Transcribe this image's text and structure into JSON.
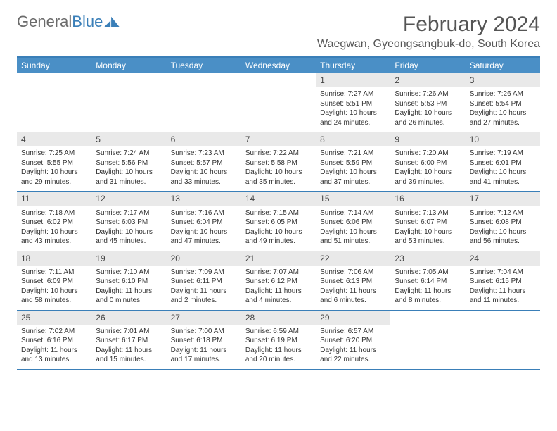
{
  "brand": {
    "text1": "General",
    "text2": "Blue",
    "color1": "#6b6b6b",
    "color2": "#3a7fb8"
  },
  "title": "February 2024",
  "location": "Waegwan, Gyeongsangbuk-do, South Korea",
  "header_bg": "#4a8fc6",
  "border_color": "#3a7fb8",
  "daynum_bg": "#e9e9e9",
  "day_names": [
    "Sunday",
    "Monday",
    "Tuesday",
    "Wednesday",
    "Thursday",
    "Friday",
    "Saturday"
  ],
  "weeks": [
    [
      null,
      null,
      null,
      null,
      {
        "n": "1",
        "sr": "Sunrise: 7:27 AM",
        "ss": "Sunset: 5:51 PM",
        "dl": "Daylight: 10 hours and 24 minutes."
      },
      {
        "n": "2",
        "sr": "Sunrise: 7:26 AM",
        "ss": "Sunset: 5:53 PM",
        "dl": "Daylight: 10 hours and 26 minutes."
      },
      {
        "n": "3",
        "sr": "Sunrise: 7:26 AM",
        "ss": "Sunset: 5:54 PM",
        "dl": "Daylight: 10 hours and 27 minutes."
      }
    ],
    [
      {
        "n": "4",
        "sr": "Sunrise: 7:25 AM",
        "ss": "Sunset: 5:55 PM",
        "dl": "Daylight: 10 hours and 29 minutes."
      },
      {
        "n": "5",
        "sr": "Sunrise: 7:24 AM",
        "ss": "Sunset: 5:56 PM",
        "dl": "Daylight: 10 hours and 31 minutes."
      },
      {
        "n": "6",
        "sr": "Sunrise: 7:23 AM",
        "ss": "Sunset: 5:57 PM",
        "dl": "Daylight: 10 hours and 33 minutes."
      },
      {
        "n": "7",
        "sr": "Sunrise: 7:22 AM",
        "ss": "Sunset: 5:58 PM",
        "dl": "Daylight: 10 hours and 35 minutes."
      },
      {
        "n": "8",
        "sr": "Sunrise: 7:21 AM",
        "ss": "Sunset: 5:59 PM",
        "dl": "Daylight: 10 hours and 37 minutes."
      },
      {
        "n": "9",
        "sr": "Sunrise: 7:20 AM",
        "ss": "Sunset: 6:00 PM",
        "dl": "Daylight: 10 hours and 39 minutes."
      },
      {
        "n": "10",
        "sr": "Sunrise: 7:19 AM",
        "ss": "Sunset: 6:01 PM",
        "dl": "Daylight: 10 hours and 41 minutes."
      }
    ],
    [
      {
        "n": "11",
        "sr": "Sunrise: 7:18 AM",
        "ss": "Sunset: 6:02 PM",
        "dl": "Daylight: 10 hours and 43 minutes."
      },
      {
        "n": "12",
        "sr": "Sunrise: 7:17 AM",
        "ss": "Sunset: 6:03 PM",
        "dl": "Daylight: 10 hours and 45 minutes."
      },
      {
        "n": "13",
        "sr": "Sunrise: 7:16 AM",
        "ss": "Sunset: 6:04 PM",
        "dl": "Daylight: 10 hours and 47 minutes."
      },
      {
        "n": "14",
        "sr": "Sunrise: 7:15 AM",
        "ss": "Sunset: 6:05 PM",
        "dl": "Daylight: 10 hours and 49 minutes."
      },
      {
        "n": "15",
        "sr": "Sunrise: 7:14 AM",
        "ss": "Sunset: 6:06 PM",
        "dl": "Daylight: 10 hours and 51 minutes."
      },
      {
        "n": "16",
        "sr": "Sunrise: 7:13 AM",
        "ss": "Sunset: 6:07 PM",
        "dl": "Daylight: 10 hours and 53 minutes."
      },
      {
        "n": "17",
        "sr": "Sunrise: 7:12 AM",
        "ss": "Sunset: 6:08 PM",
        "dl": "Daylight: 10 hours and 56 minutes."
      }
    ],
    [
      {
        "n": "18",
        "sr": "Sunrise: 7:11 AM",
        "ss": "Sunset: 6:09 PM",
        "dl": "Daylight: 10 hours and 58 minutes."
      },
      {
        "n": "19",
        "sr": "Sunrise: 7:10 AM",
        "ss": "Sunset: 6:10 PM",
        "dl": "Daylight: 11 hours and 0 minutes."
      },
      {
        "n": "20",
        "sr": "Sunrise: 7:09 AM",
        "ss": "Sunset: 6:11 PM",
        "dl": "Daylight: 11 hours and 2 minutes."
      },
      {
        "n": "21",
        "sr": "Sunrise: 7:07 AM",
        "ss": "Sunset: 6:12 PM",
        "dl": "Daylight: 11 hours and 4 minutes."
      },
      {
        "n": "22",
        "sr": "Sunrise: 7:06 AM",
        "ss": "Sunset: 6:13 PM",
        "dl": "Daylight: 11 hours and 6 minutes."
      },
      {
        "n": "23",
        "sr": "Sunrise: 7:05 AM",
        "ss": "Sunset: 6:14 PM",
        "dl": "Daylight: 11 hours and 8 minutes."
      },
      {
        "n": "24",
        "sr": "Sunrise: 7:04 AM",
        "ss": "Sunset: 6:15 PM",
        "dl": "Daylight: 11 hours and 11 minutes."
      }
    ],
    [
      {
        "n": "25",
        "sr": "Sunrise: 7:02 AM",
        "ss": "Sunset: 6:16 PM",
        "dl": "Daylight: 11 hours and 13 minutes."
      },
      {
        "n": "26",
        "sr": "Sunrise: 7:01 AM",
        "ss": "Sunset: 6:17 PM",
        "dl": "Daylight: 11 hours and 15 minutes."
      },
      {
        "n": "27",
        "sr": "Sunrise: 7:00 AM",
        "ss": "Sunset: 6:18 PM",
        "dl": "Daylight: 11 hours and 17 minutes."
      },
      {
        "n": "28",
        "sr": "Sunrise: 6:59 AM",
        "ss": "Sunset: 6:19 PM",
        "dl": "Daylight: 11 hours and 20 minutes."
      },
      {
        "n": "29",
        "sr": "Sunrise: 6:57 AM",
        "ss": "Sunset: 6:20 PM",
        "dl": "Daylight: 11 hours and 22 minutes."
      },
      null,
      null
    ]
  ]
}
